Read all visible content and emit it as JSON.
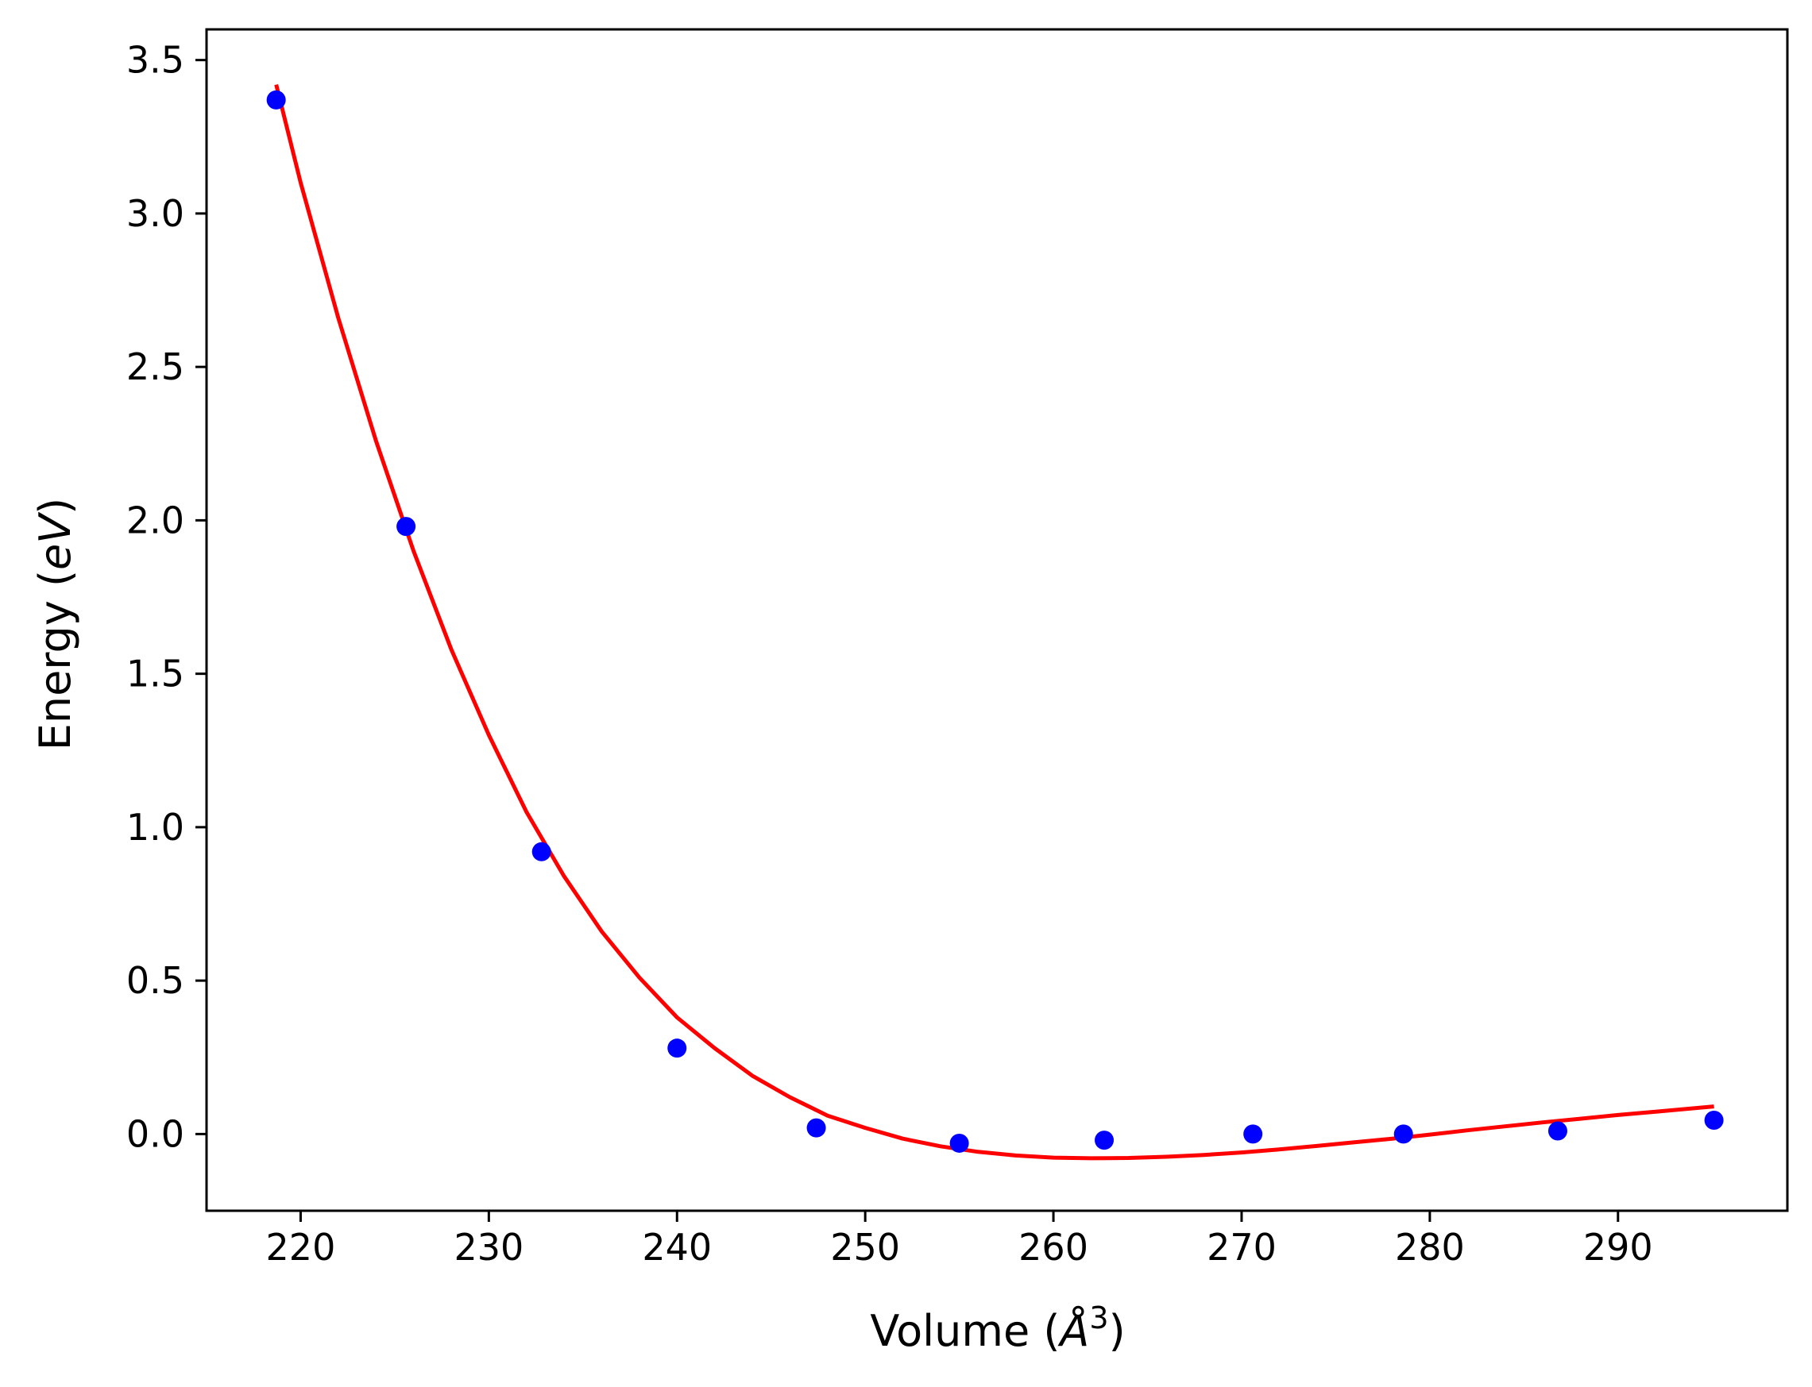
{
  "chart_data": {
    "type": "scatter",
    "title": "",
    "xlabel": {
      "prefix": "Volume (",
      "symbol": "Å",
      "superscript": "3",
      "suffix": ")"
    },
    "ylabel": {
      "prefix": "Energy (",
      "italic": "eV",
      "suffix": ")"
    },
    "xlim": [
      215,
      299
    ],
    "ylim": [
      -0.25,
      3.6
    ],
    "xticks": [
      220,
      230,
      240,
      250,
      260,
      270,
      280,
      290
    ],
    "xtick_labels": [
      "220",
      "230",
      "240",
      "250",
      "260",
      "270",
      "280",
      "290"
    ],
    "yticks": [
      0.0,
      0.5,
      1.0,
      1.5,
      2.0,
      2.5,
      3.0,
      3.5
    ],
    "ytick_labels": [
      "0.0",
      "0.5",
      "1.0",
      "1.5",
      "2.0",
      "2.5",
      "3.0",
      "3.5"
    ],
    "grid": false,
    "legend": "none",
    "series": [
      {
        "kind": "points",
        "color": "#0000ff",
        "x": [
          218.7,
          225.6,
          232.8,
          240.0,
          247.4,
          255.0,
          262.7,
          270.6,
          278.6,
          286.8,
          295.1
        ],
        "y": [
          3.37,
          1.98,
          0.92,
          0.28,
          0.02,
          -0.03,
          -0.02,
          0.0,
          0.0,
          0.01,
          0.045
        ]
      },
      {
        "kind": "fit-curve",
        "color": "#ff0000",
        "x": [
          218.7,
          220,
          222,
          224,
          226,
          228,
          230,
          232,
          234,
          236,
          238,
          240,
          242,
          244,
          246,
          248,
          250,
          252,
          254,
          256,
          258,
          260,
          262,
          264,
          266,
          268,
          270,
          272,
          274,
          276,
          278,
          280,
          282,
          284,
          286,
          288,
          290,
          292,
          295.1
        ],
        "y": [
          3.42,
          3.1,
          2.66,
          2.26,
          1.9,
          1.58,
          1.3,
          1.05,
          0.84,
          0.66,
          0.51,
          0.38,
          0.28,
          0.19,
          0.12,
          0.06,
          0.02,
          -0.015,
          -0.04,
          -0.058,
          -0.07,
          -0.077,
          -0.079,
          -0.078,
          -0.074,
          -0.068,
          -0.06,
          -0.05,
          -0.039,
          -0.027,
          -0.015,
          -0.002,
          0.012,
          0.025,
          0.038,
          0.05,
          0.062,
          0.073,
          0.09
        ]
      }
    ]
  }
}
